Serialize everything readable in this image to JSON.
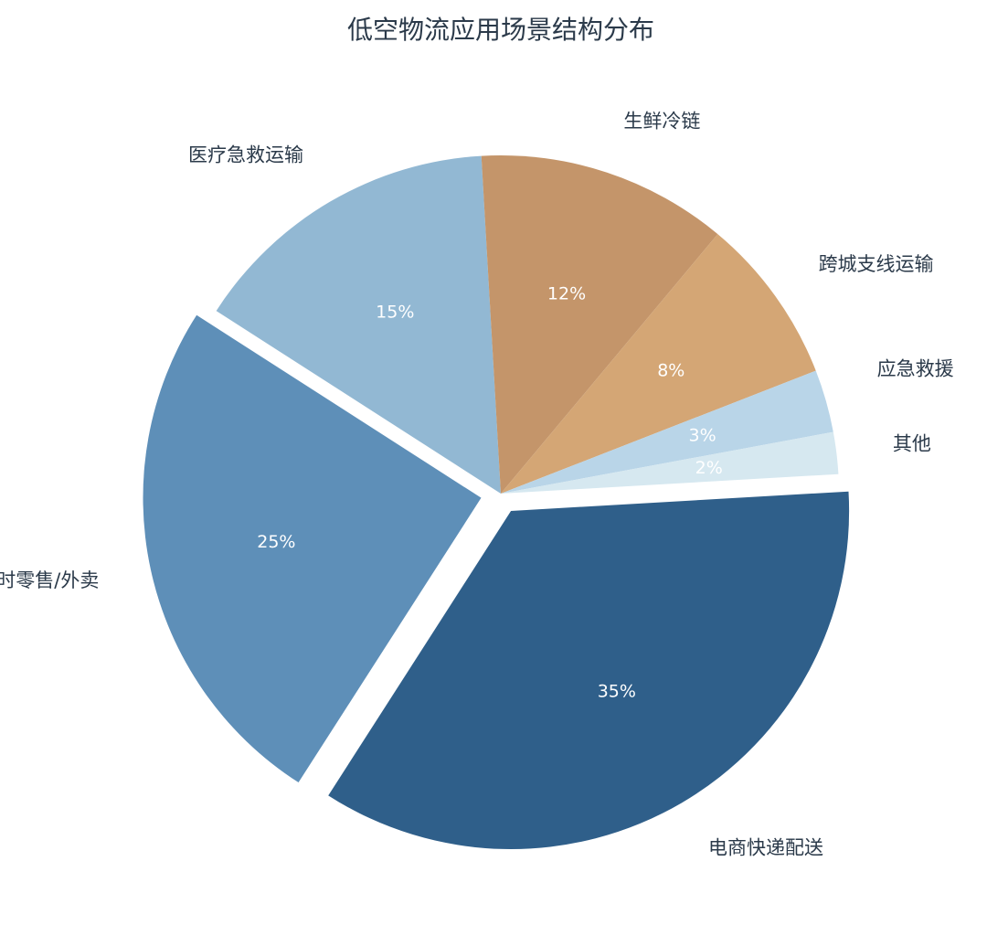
{
  "chart_data": {
    "type": "pie",
    "title": "低空物流应用场景结构分布",
    "slices": [
      {
        "label": "电商快递配送",
        "value": 35,
        "value_label": "35%",
        "color": "#2f5f8a",
        "exploded": true
      },
      {
        "label": "即时零售/外卖",
        "value": 25,
        "value_label": "25%",
        "color": "#5e8fb8",
        "exploded": true
      },
      {
        "label": "医疗急救运输",
        "value": 15,
        "value_label": "15%",
        "color": "#92b8d3",
        "exploded": false
      },
      {
        "label": "生鲜冷链",
        "value": 12,
        "value_label": "12%",
        "color": "#c4956a",
        "exploded": false
      },
      {
        "label": "跨城支线运输",
        "value": 8,
        "value_label": "8%",
        "color": "#d4a675",
        "exploded": false
      },
      {
        "label": "应急救援",
        "value": 3,
        "value_label": "3%",
        "color": "#b9d5e8",
        "exploded": false
      },
      {
        "label": "其他",
        "value": 2,
        "value_label": "2%",
        "color": "#d6e8f0",
        "exploded": false
      }
    ]
  }
}
